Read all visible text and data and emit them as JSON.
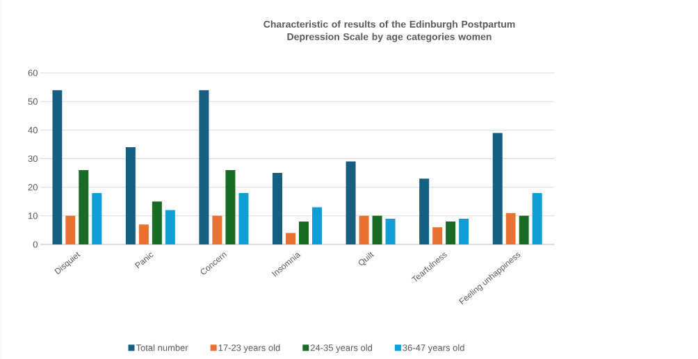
{
  "chart_data": {
    "type": "bar",
    "title": "Characteristic of results of the Edinburgh Postpartum Depression Scale by age categories women",
    "categories": [
      "Disquiet",
      "Panic",
      "Concern",
      "Insomnia",
      "Quilt",
      "Tearfulness",
      "Feeling unhappiness"
    ],
    "series": [
      {
        "name": "Total number",
        "color": "#175f82",
        "values": [
          54,
          34,
          54,
          25,
          29,
          23,
          39
        ]
      },
      {
        "name": "17-23 years old",
        "color": "#e97132",
        "values": [
          10,
          7,
          10,
          4,
          10,
          6,
          11
        ]
      },
      {
        "name": "24-35 years old",
        "color": "#196b24",
        "values": [
          26,
          15,
          26,
          8,
          10,
          8,
          10
        ]
      },
      {
        "name": "36-47 years old",
        "color": "#0f9ed5",
        "values": [
          18,
          12,
          18,
          13,
          9,
          9,
          18
        ]
      }
    ],
    "ylim": [
      0,
      60
    ],
    "yticks": [
      0,
      10,
      20,
      30,
      40,
      50,
      60
    ],
    "grid": "y",
    "legend": "bottom"
  }
}
